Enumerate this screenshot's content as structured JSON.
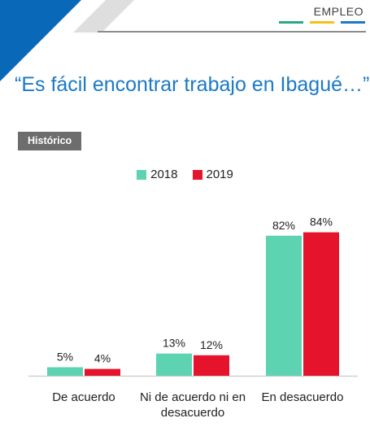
{
  "header": {
    "section_label": "EMPLEO",
    "section_colors": [
      "#2aa889",
      "#f2c21b",
      "#1b79c6"
    ]
  },
  "title": "“Es fácil encontrar trabajo en Ibagué…”",
  "tag": "Histórico",
  "colors": {
    "title": "#1b79c6",
    "corner_blue": "#0a68b8",
    "corner_gray": "#d5d5d5"
  },
  "chart_data": {
    "type": "bar",
    "categories": [
      "De acuerdo",
      "Ni de acuerdo ni en desacuerdo",
      "En desacuerdo"
    ],
    "category_lines": [
      [
        "De acuerdo"
      ],
      [
        "Ni de acuerdo ni en",
        "desacuerdo"
      ],
      [
        "En desacuerdo"
      ]
    ],
    "series": [
      {
        "name": "2018",
        "values": [
          5,
          13,
          82
        ],
        "labels": [
          "5%",
          "13%",
          "82%"
        ],
        "color": "#5dd3b1"
      },
      {
        "name": "2019",
        "values": [
          4,
          12,
          84
        ],
        "labels": [
          "4%",
          "12%",
          "84%"
        ],
        "color": "#e5132b"
      }
    ],
    "ylim": [
      0,
      100
    ],
    "legend_position": "top-center",
    "grid": false
  }
}
